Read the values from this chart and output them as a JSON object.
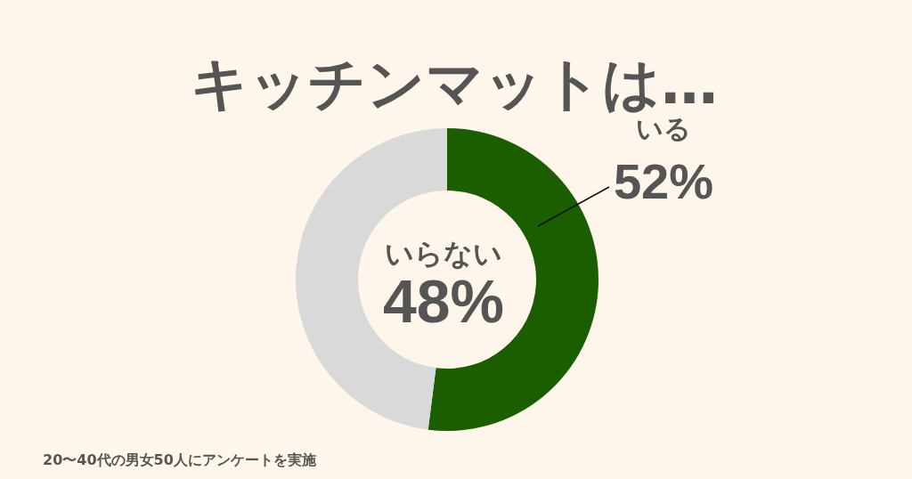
{
  "chart_data": {
    "type": "donut",
    "title": "キッチンマットは…",
    "categories": [
      "いる",
      "いらない"
    ],
    "values": [
      52,
      48
    ],
    "colors": [
      "#1a5e00",
      "#d9d9d9"
    ],
    "value_labels": [
      "52%",
      "48%"
    ],
    "annotations": [
      "20〜40代の男女50人にアンケートを実施"
    ]
  }
}
